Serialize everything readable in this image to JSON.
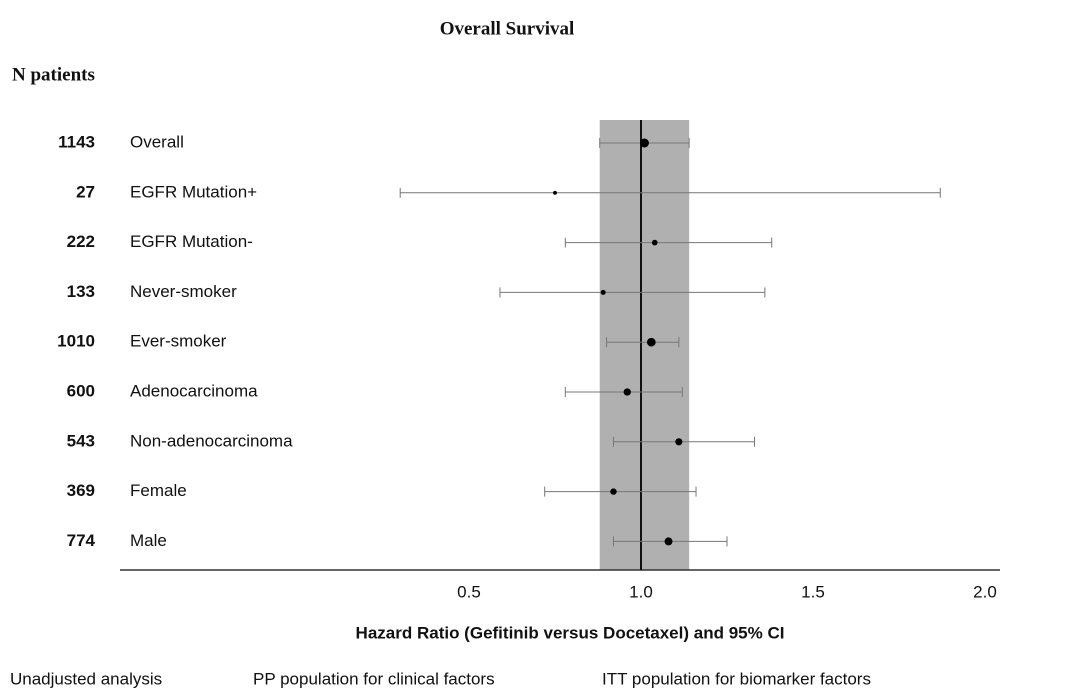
{
  "chart_data": {
    "type": "forest",
    "subtitle": "Overall Survival",
    "n_header": "N patients",
    "categories": [
      "Overall",
      "EGFR Mutation+",
      "EGFR Mutation-",
      "Never-smoker",
      "Ever-smoker",
      "Adenocarcinoma",
      "Non-adenocarcinoma",
      "Female",
      "Male"
    ],
    "n_patients": [
      1143,
      27,
      222,
      133,
      1010,
      600,
      543,
      369,
      774
    ],
    "values": [
      1.01,
      0.75,
      1.04,
      0.89,
      1.03,
      0.96,
      1.11,
      0.92,
      1.08
    ],
    "ci_low": [
      0.88,
      0.3,
      0.78,
      0.59,
      0.9,
      0.78,
      0.92,
      0.72,
      0.92
    ],
    "ci_high": [
      1.14,
      1.87,
      1.38,
      1.36,
      1.11,
      1.12,
      1.33,
      1.16,
      1.25
    ],
    "reference": 1,
    "color": "#000000",
    "band_color": "#b0b0b0",
    "xlim": [
      -0.5,
      2.0
    ],
    "xticks": [
      0.5,
      {
        "value": 1.0,
        "label": "1.0"
      },
      1.5,
      {
        "value": 2.0,
        "label": "2.0"
      }
    ],
    "xlabel": "Hazard Ratio (Gefitinib versus Docetaxel) and 95% CI",
    "footnotes": [
      "Unadjusted analysis",
      "PP population for clinical factors",
      "ITT population for biomarker factors"
    ]
  }
}
